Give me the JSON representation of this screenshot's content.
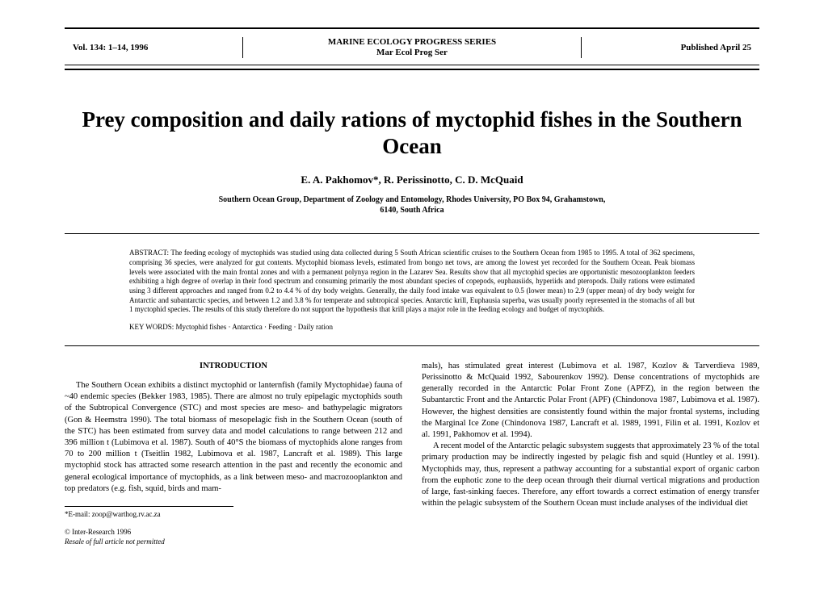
{
  "header": {
    "volume": "Vol. 134: 1–14, 1996",
    "series_line1": "MARINE ECOLOGY PROGRESS SERIES",
    "series_line2": "Mar Ecol Prog Ser",
    "published": "Published April 25"
  },
  "title": "Prey composition and daily rations of myctophid fishes in the Southern Ocean",
  "authors": "E. A. Pakhomov*, R. Perissinotto, C. D. McQuaid",
  "affiliation_line1": "Southern Ocean Group, Department of Zoology and Entomology, Rhodes University, PO Box 94, Grahamstown,",
  "affiliation_line2": "6140, South Africa",
  "abstract_label": "ABSTRACT: ",
  "abstract_body": "The feeding ecology of myctophids was studied using data collected during 5 South African scientific cruises to the Southern Ocean from 1985 to 1995. A total of 362 specimens, comprising 36 species, were analyzed for gut contents. Myctophid biomass levels, estimated from bongo net tows, are among the lowest yet recorded for the Southern Ocean. Peak biomass levels were associated with the main frontal zones and with a permanent polynya region in the Lazarev Sea. Results show that all myctophid species are opportunistic mesozooplankton feeders exhibiting a high degree of overlap in their food spectrum and consuming primarily the most abundant species of copepods, euphausiids, hyperiids and pteropods. Daily rations were estimated using 3 different approaches and ranged from 0.2 to 4.4 % of dry body weights. Generally, the daily food intake was equivalent to 0.5 (lower mean) to 2.9 (upper mean) of dry body weight for Antarctic and subantarctic species, and between 1.2 and 3.8 % for temperate and subtropical species. Antarctic krill, Euphausia superba, was usually poorly represented in the stomachs of all but 1 myctophid species. The results of this study therefore do not support the hypothesis that krill plays a major role in the feeding ecology and budget of myctophids.",
  "keywords_label": "KEY WORDS: ",
  "keywords_text": "Myctophid fishes · Antarctica · Feeding · Daily ration",
  "intro_heading": "INTRODUCTION",
  "intro_para": "The Southern Ocean exhibits a distinct myctophid or lanternfish (family Myctophidae) fauna of ~40 endemic species (Bekker 1983, 1985). There are almost no truly epipelagic myctophids south of the Subtropical Convergence (STC) and most species are meso- and bathypelagic migrators (Gon & Heemstra 1990). The total biomass of mesopelagic fish in the Southern Ocean (south of the STC) has been estimated from survey data and model calculations to range between 212 and 396 million t (Lubimova et al. 1987). South of 40°S the biomass of myctophids alone ranges from 70 to 200 million t (Tseitlin 1982, Lubimova et al. 1987, Lancraft et al. 1989). This large myctophid stock has attracted some research attention in the past and recently the economic and general ecological importance of myctophids, as a link between meso- and macrozooplankton and top predators (e.g. fish, squid, birds and mam-",
  "col2_para1": "mals), has stimulated great interest (Lubimova et al. 1987, Kozlov & Tarverdieva 1989, Perissinotto & McQuaid 1992, Sabourenkov 1992). Dense concentrations of myctophids are generally recorded in the Antarctic Polar Front Zone (APFZ), in the region between the Subantarctic Front and the Antarctic Polar Front (APF) (Chindonova 1987, Lubimova et al. 1987). However, the highest densities are consistently found within the major frontal systems, including the Marginal Ice Zone (Chindonova 1987, Lancraft et al. 1989, 1991, Filin et al. 1991, Kozlov et al. 1991, Pakhomov et al. 1994).",
  "col2_para2": "A recent model of the Antarctic pelagic subsystem suggests that approximately 23 % of the total primary production may be indirectly ingested by pelagic fish and squid (Huntley et al. 1991). Myctophids may, thus, represent a pathway accounting for a substantial export of organic carbon from the euphotic zone to the deep ocean through their diurnal vertical migrations and production of large, fast-sinking faeces. Therefore, any effort towards a correct estimation of energy transfer within the pelagic subsystem of the Southern Ocean must include analyses of the individual diet",
  "footnote": "*E-mail: zoop@warthog.rv.ac.za",
  "copyright_line1": "© Inter-Research 1996",
  "copyright_line2": "Resale of full article not permitted"
}
